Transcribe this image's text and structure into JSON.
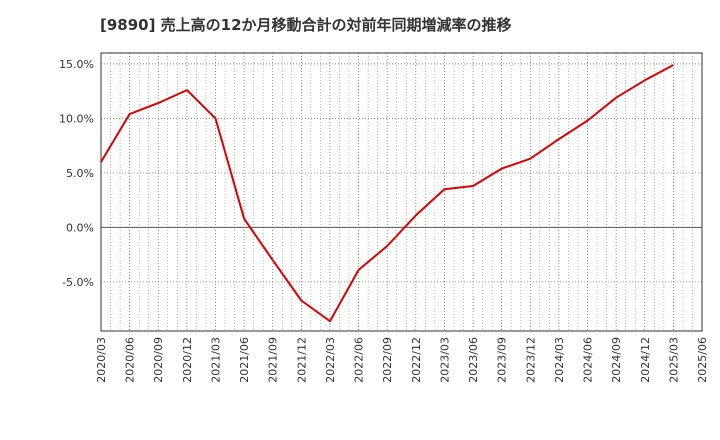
{
  "chart_data": {
    "type": "line",
    "title": "[9890]  売上高の12か月移動合計の対前年同期増減率の推移",
    "xlabel": "",
    "ylabel": "",
    "ylim": [
      -9.5,
      16
    ],
    "y_ticks": [
      15,
      10,
      5,
      0,
      -5
    ],
    "y_tick_labels": [
      "15.0%",
      "10.0%",
      "5.0%",
      "0.0%",
      "-5.0%"
    ],
    "x_tick_labels": [
      "2020/03",
      "2020/06",
      "2020/09",
      "2020/12",
      "2021/03",
      "2021/06",
      "2021/09",
      "2021/12",
      "2022/03",
      "2022/06",
      "2022/09",
      "2022/12",
      "2023/03",
      "2023/06",
      "2023/09",
      "2023/12",
      "2024/03",
      "2024/06",
      "2024/09",
      "2024/12",
      "2025/03",
      "2025/06"
    ],
    "grid": true,
    "line_color": "#dd0000",
    "series": [
      {
        "x": [
          "2020/03",
          "2020/06",
          "2020/09",
          "2020/12",
          "2021/03",
          "2021/06",
          "2021/09",
          "2021/12",
          "2022/03",
          "2022/06",
          "2022/09",
          "2022/12",
          "2023/03",
          "2023/06",
          "2023/09",
          "2023/12",
          "2024/03",
          "2024/06",
          "2024/09",
          "2024/12",
          "2025/03"
        ],
        "values": [
          6.0,
          10.4,
          11.4,
          12.6,
          10.0,
          0.8,
          -3.0,
          -6.7,
          -8.6,
          -3.9,
          -1.7,
          1.1,
          3.5,
          3.8,
          5.4,
          6.3,
          8.1,
          9.8,
          11.9,
          13.5,
          14.9
        ]
      }
    ]
  }
}
